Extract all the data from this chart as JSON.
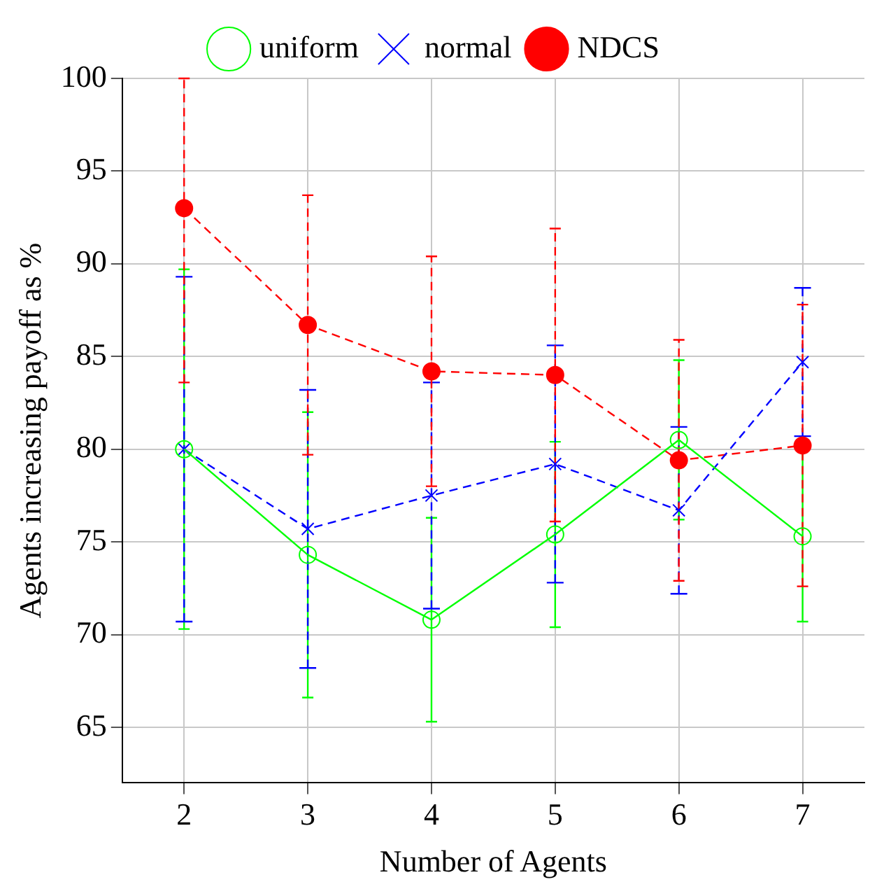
{
  "chart_data": {
    "type": "line",
    "xlabel": "Number of Agents",
    "ylabel": "Agents increasing payoff as %",
    "x": [
      2,
      3,
      4,
      5,
      6,
      7
    ],
    "xlim": [
      1.5,
      7.5
    ],
    "xticks": [
      2,
      3,
      4,
      5,
      6,
      7
    ],
    "ylim": [
      62,
      100
    ],
    "yticks": [
      65,
      70,
      75,
      80,
      85,
      90,
      95,
      100
    ],
    "grid": true,
    "legend": "top",
    "series": [
      {
        "name": "uniform",
        "color": "#00ff00",
        "marker": "circle",
        "line_style": "solid",
        "values": [
          80,
          74.3,
          70.8,
          75.4,
          80.5,
          75.3
        ],
        "errors": [
          [
            70.3,
            89.7
          ],
          [
            66.6,
            82
          ],
          [
            65.3,
            76.3
          ],
          [
            70.4,
            80.4
          ],
          [
            76.2,
            84.8
          ],
          [
            70.7,
            79.9
          ]
        ]
      },
      {
        "name": "normal",
        "color": "#0000ff",
        "marker": "cross",
        "line_style": "dashed",
        "values": [
          80,
          75.7,
          77.5,
          79.2,
          76.7,
          84.7
        ],
        "errors": [
          [
            70.7,
            89.3
          ],
          [
            68.2,
            83.2
          ],
          [
            71.4,
            83.6
          ],
          [
            72.8,
            85.6
          ],
          [
            72.2,
            81.2
          ],
          [
            80.7,
            88.7
          ]
        ]
      },
      {
        "name": "NDCS",
        "color": "#ff0000",
        "marker": "filled circle",
        "line_style": "dashed",
        "values": [
          93,
          86.7,
          84.2,
          84,
          79.4,
          80.2
        ],
        "errors": [
          [
            83.6,
            100
          ],
          [
            79.7,
            93.7
          ],
          [
            78,
            90.4
          ],
          [
            76.1,
            91.9
          ],
          [
            72.9,
            85.9
          ],
          [
            72.6,
            87.8
          ]
        ]
      }
    ]
  }
}
